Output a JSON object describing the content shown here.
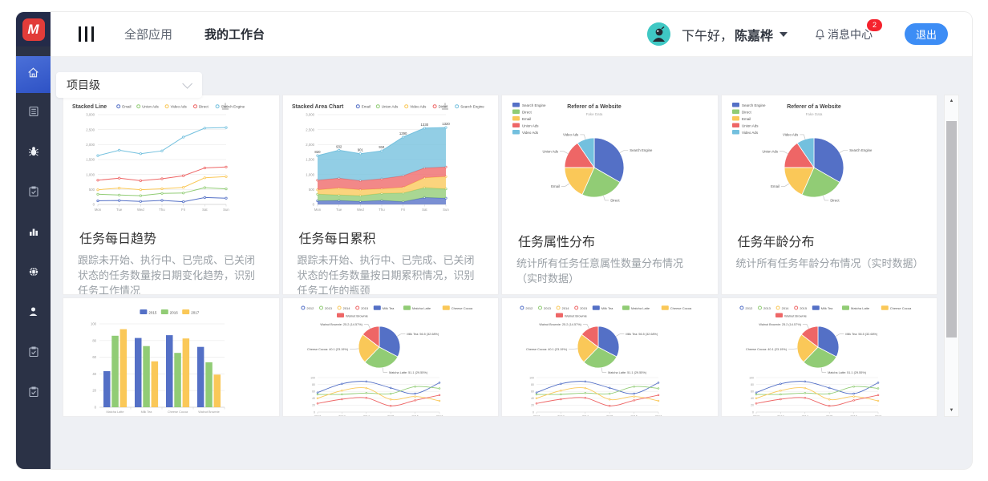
{
  "header": {
    "logo_text": "M",
    "nav": [
      {
        "label": "全部应用",
        "active": false
      },
      {
        "label": "我的工作台",
        "active": true
      }
    ],
    "greeting_prefix": "下午好，",
    "user_name": "陈嘉桦",
    "message_center_label": "消息中心",
    "message_badge": "2",
    "logout_label": "退出"
  },
  "sidebar": {
    "items": [
      "home",
      "document",
      "bug",
      "task-check",
      "bar-chart",
      "globe",
      "user",
      "clipboard-check-1",
      "clipboard-check-2"
    ]
  },
  "filter": {
    "selected": "项目级"
  },
  "cards": [
    {
      "title": "任务每日趋势",
      "desc": "跟踪未开始、执行中、已完成、已关闭状态的任务数量按日期变化趋势，识别任务工作情况",
      "chart": "stacked_line"
    },
    {
      "title": "任务每日累积",
      "desc": "跟踪未开始、执行中、已完成、已关闭状态的任务数量按日期累积情况，识别任务工作的瓶颈",
      "chart": "stacked_area"
    },
    {
      "title": "任务属性分布",
      "desc": "统计所有任务任意属性数量分布情况（实时数据）",
      "chart": "referer_pie"
    },
    {
      "title": "任务年龄分布",
      "desc": "统计所有任务年龄分布情况（实时数据）",
      "chart": "referer_pie"
    },
    {
      "chart": "grouped_bar"
    },
    {
      "chart": "dataset_combo"
    },
    {
      "chart": "dataset_combo"
    },
    {
      "chart": "dataset_combo"
    }
  ],
  "chart_data": {
    "stacked_line": {
      "type": "line",
      "title": "Stacked Line",
      "x": [
        "Mon",
        "Tue",
        "Wed",
        "Thu",
        "Fri",
        "Sat",
        "Sun"
      ],
      "ylim": [
        0,
        3000
      ],
      "ytick_labels": [
        "0",
        "500",
        "1,000",
        "1,500",
        "2,000",
        "2,500",
        "3,000"
      ],
      "stacked": true,
      "grid": true,
      "legend_position": "top",
      "series": [
        {
          "name": "Email",
          "color": "#5470c6",
          "values": [
            120,
            132,
            101,
            134,
            90,
            230,
            210
          ]
        },
        {
          "name": "Union Ads",
          "color": "#91cc75",
          "values": [
            220,
            182,
            191,
            234,
            290,
            330,
            310
          ]
        },
        {
          "name": "Video Ads",
          "color": "#fac858",
          "values": [
            150,
            232,
            201,
            154,
            190,
            330,
            410
          ]
        },
        {
          "name": "Direct",
          "color": "#ee6666",
          "values": [
            320,
            332,
            301,
            334,
            390,
            330,
            320
          ]
        },
        {
          "name": "Search Engine",
          "color": "#73c0de",
          "values": [
            820,
            932,
            901,
            934,
            1290,
            1330,
            1320
          ]
        }
      ]
    },
    "stacked_area": {
      "type": "area",
      "title": "Stacked Area Chart",
      "x": [
        "Mon",
        "Tue",
        "Wed",
        "Thu",
        "Fri",
        "Sat",
        "Sun"
      ],
      "ylim": [
        0,
        3000
      ],
      "ytick_labels": [
        "0",
        "500",
        "1,000",
        "1,500",
        "2,000",
        "2,500",
        "3,000"
      ],
      "stacked": true,
      "grid": true,
      "point_labels_series": "Search Engine",
      "point_labels": [
        820,
        932,
        901,
        934,
        1290,
        1330,
        1320
      ],
      "series": [
        {
          "name": "Email",
          "color": "#5470c6",
          "values": [
            120,
            132,
            101,
            134,
            90,
            230,
            210
          ]
        },
        {
          "name": "Union Ads",
          "color": "#91cc75",
          "values": [
            220,
            182,
            191,
            234,
            290,
            330,
            310
          ]
        },
        {
          "name": "Video Ads",
          "color": "#fac858",
          "values": [
            150,
            232,
            201,
            154,
            190,
            330,
            410
          ]
        },
        {
          "name": "Direct",
          "color": "#ee6666",
          "values": [
            320,
            332,
            301,
            334,
            390,
            330,
            320
          ]
        },
        {
          "name": "Search Engine",
          "color": "#73c0de",
          "values": [
            820,
            932,
            901,
            934,
            1290,
            1330,
            1320
          ]
        }
      ]
    },
    "referer_pie": {
      "type": "pie",
      "title": "Referer of a Website",
      "subtitle": "Fake Data",
      "legend_position": "left",
      "slices": [
        {
          "name": "Search Engine",
          "value": 1048,
          "color": "#5470c6"
        },
        {
          "name": "Direct",
          "value": 735,
          "color": "#91cc75"
        },
        {
          "name": "Email",
          "value": 580,
          "color": "#fac858"
        },
        {
          "name": "Union Ads",
          "value": 484,
          "color": "#ee6666"
        },
        {
          "name": "Video Ads",
          "value": 300,
          "color": "#73c0de"
        }
      ]
    },
    "grouped_bar": {
      "type": "bar",
      "categories": [
        "Matcha Latte",
        "Milk Tea",
        "Cheese Cocoa",
        "Walnut Brownie"
      ],
      "ylim": [
        0,
        100
      ],
      "yticks": [
        0,
        20,
        40,
        60,
        80,
        100
      ],
      "legend_position": "top",
      "series": [
        {
          "name": "2015",
          "color": "#5470c6",
          "values": [
            43.3,
            83.1,
            86.4,
            72.4
          ]
        },
        {
          "name": "2016",
          "color": "#91cc75",
          "values": [
            85.8,
            73.4,
            65.2,
            53.9
          ]
        },
        {
          "name": "2017",
          "color": "#fac858",
          "values": [
            93.7,
            55.1,
            82.5,
            39.1
          ]
        }
      ]
    },
    "dataset_combo": {
      "type": "pie+line",
      "x": [
        "2012",
        "2013",
        "2014",
        "2015",
        "2016",
        "2017"
      ],
      "ylim": [
        0,
        100
      ],
      "yticks": [
        0,
        20,
        40,
        60,
        80,
        100
      ],
      "line_legend": [
        "2012",
        "2013",
        "2014",
        "2015"
      ],
      "line_legend_colors": [
        "#5470c6",
        "#91cc75",
        "#fac858",
        "#ee6666"
      ],
      "pie_year": "2012",
      "pie_label_format": "{name}: {value} ({pct}%)",
      "series": [
        {
          "name": "Milk Tea",
          "color": "#5470c6",
          "values": [
            56.5,
            82.1,
            88.7,
            70.1,
            53.4,
            85.1
          ]
        },
        {
          "name": "Matcha Latte",
          "color": "#91cc75",
          "values": [
            51.1,
            51.4,
            55.1,
            53.3,
            73.8,
            68.7
          ]
        },
        {
          "name": "Cheese Cocoa",
          "color": "#fac858",
          "values": [
            40.1,
            62.2,
            69.5,
            36.4,
            45.2,
            32.5
          ]
        },
        {
          "name": "Walnut Brownie",
          "color": "#ee6666",
          "values": [
            25.2,
            37.1,
            41.2,
            18,
            33.9,
            49.1
          ]
        }
      ]
    }
  }
}
